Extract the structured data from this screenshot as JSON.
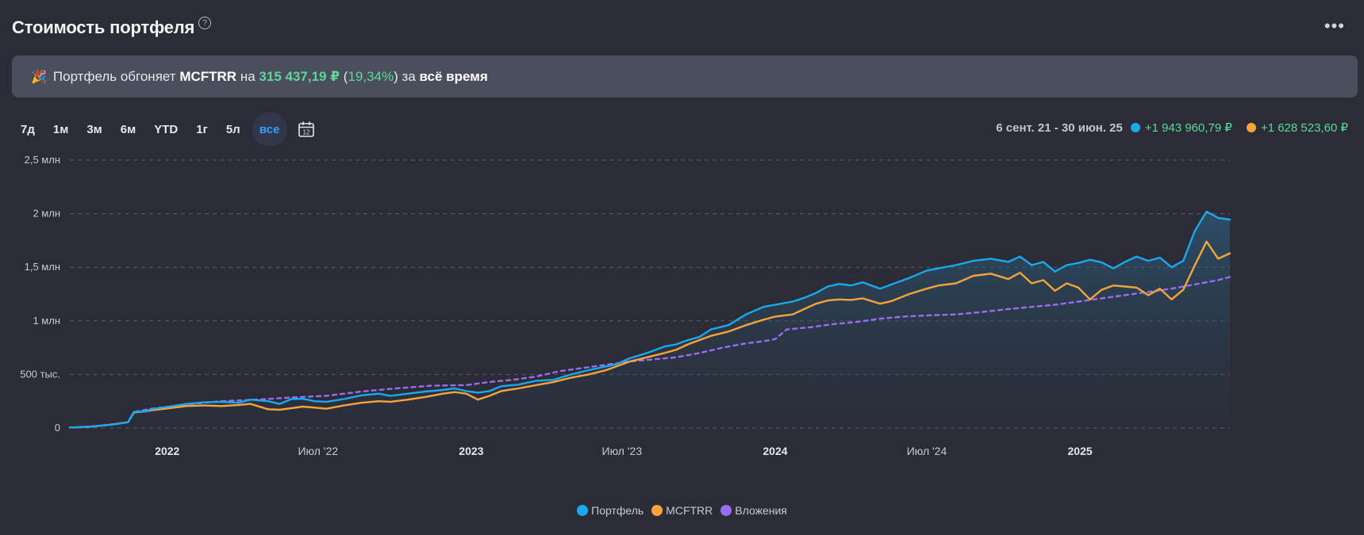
{
  "header": {
    "title": "Стоимость портфеля",
    "help_icon": "question-circle-icon",
    "menu_icon": "more-dots-icon",
    "menu_glyph": "•••",
    "help_glyph": "?"
  },
  "banner": {
    "icon": "party-popper-icon",
    "emoji": "🎉",
    "prefix": "Портфель обгоняет",
    "benchmark": "MCFTRR",
    "middle": "на",
    "amount": "315 437,19 ₽",
    "percent_open": "(",
    "percent": "19,34%",
    "percent_close": ")",
    "suffix": "за",
    "period": "всё время"
  },
  "periods": [
    {
      "label": "7д",
      "active": false
    },
    {
      "label": "1м",
      "active": false
    },
    {
      "label": "3м",
      "active": false
    },
    {
      "label": "6м",
      "active": false
    },
    {
      "label": "YTD",
      "active": false
    },
    {
      "label": "1г",
      "active": false
    },
    {
      "label": "5л",
      "active": false
    },
    {
      "label": "все",
      "active": true
    }
  ],
  "calendar_icon": "calendar-icon",
  "calendar_day": "12",
  "summary": {
    "range": "6 сент. 21 - 30 июн. 25",
    "portfolio_change": "+1 943 960,79 ₽",
    "benchmark_change": "+1 628 523,60 ₽"
  },
  "colors": {
    "portfolio": "#1aa9ef",
    "benchmark": "#f6a43a",
    "invested": "#9a6cf0",
    "positive": "#5ed898",
    "accent": "#2fa3ff"
  },
  "chart_data": {
    "type": "line",
    "title": "",
    "y_ticks": [
      "0",
      "500 тыс.",
      "1 млн",
      "1,5 млн",
      "2 млн",
      "2,5 млн"
    ],
    "y_tick_values": [
      0,
      500000,
      1000000,
      1500000,
      2000000,
      2500000
    ],
    "ylim": [
      0,
      2500000
    ],
    "x_ticks": [
      {
        "label": "2022",
        "x": "2022-01-01",
        "bold": true
      },
      {
        "label": "Июл '22",
        "x": "2022-07-01",
        "bold": false
      },
      {
        "label": "2023",
        "x": "2023-01-01",
        "bold": true
      },
      {
        "label": "Июл '23",
        "x": "2023-07-01",
        "bold": false
      },
      {
        "label": "2024",
        "x": "2024-01-01",
        "bold": true
      },
      {
        "label": "Июл '24",
        "x": "2024-07-01",
        "bold": false
      },
      {
        "label": "2025",
        "x": "2025-01-01",
        "bold": true
      }
    ],
    "xlim": [
      "2021-09-06",
      "2025-06-30"
    ],
    "grid": true,
    "legend_position": "bottom-center",
    "series": [
      {
        "name": "Портфель",
        "style": "solid-area",
        "points": [
          [
            "2021-09-06",
            5000
          ],
          [
            "2021-09-20",
            8000
          ],
          [
            "2021-10-04",
            15000
          ],
          [
            "2021-10-18",
            25000
          ],
          [
            "2021-11-01",
            38000
          ],
          [
            "2021-11-15",
            55000
          ],
          [
            "2021-11-22",
            150000
          ],
          [
            "2021-12-06",
            155000
          ],
          [
            "2021-12-13",
            175000
          ],
          [
            "2022-01-03",
            200000
          ],
          [
            "2022-01-24",
            225000
          ],
          [
            "2022-02-14",
            240000
          ],
          [
            "2022-03-07",
            245000
          ],
          [
            "2022-03-28",
            235000
          ],
          [
            "2022-04-11",
            265000
          ],
          [
            "2022-05-02",
            250000
          ],
          [
            "2022-05-16",
            225000
          ],
          [
            "2022-05-30",
            270000
          ],
          [
            "2022-06-13",
            272000
          ],
          [
            "2022-06-27",
            250000
          ],
          [
            "2022-07-11",
            245000
          ],
          [
            "2022-08-01",
            270000
          ],
          [
            "2022-08-22",
            305000
          ],
          [
            "2022-09-12",
            320000
          ],
          [
            "2022-09-26",
            300000
          ],
          [
            "2022-10-17",
            320000
          ],
          [
            "2022-11-07",
            340000
          ],
          [
            "2022-11-28",
            355000
          ],
          [
            "2022-12-12",
            370000
          ],
          [
            "2022-12-26",
            345000
          ],
          [
            "2023-01-09",
            330000
          ],
          [
            "2023-01-23",
            345000
          ],
          [
            "2023-02-06",
            390000
          ],
          [
            "2023-02-27",
            405000
          ],
          [
            "2023-03-20",
            440000
          ],
          [
            "2023-04-10",
            450000
          ],
          [
            "2023-05-01",
            500000
          ],
          [
            "2023-05-22",
            540000
          ],
          [
            "2023-06-12",
            575000
          ],
          [
            "2023-06-26",
            600000
          ],
          [
            "2023-07-10",
            650000
          ],
          [
            "2023-07-31",
            700000
          ],
          [
            "2023-08-21",
            760000
          ],
          [
            "2023-09-04",
            780000
          ],
          [
            "2023-09-18",
            820000
          ],
          [
            "2023-10-02",
            850000
          ],
          [
            "2023-10-16",
            920000
          ],
          [
            "2023-11-06",
            960000
          ],
          [
            "2023-11-27",
            1060000
          ],
          [
            "2023-12-18",
            1130000
          ],
          [
            "2024-01-01",
            1150000
          ],
          [
            "2024-01-22",
            1180000
          ],
          [
            "2024-02-05",
            1215000
          ],
          [
            "2024-02-19",
            1260000
          ],
          [
            "2024-03-04",
            1320000
          ],
          [
            "2024-03-18",
            1345000
          ],
          [
            "2024-04-01",
            1330000
          ],
          [
            "2024-04-15",
            1360000
          ],
          [
            "2024-05-06",
            1300000
          ],
          [
            "2024-05-20",
            1340000
          ],
          [
            "2024-06-10",
            1400000
          ],
          [
            "2024-07-01",
            1470000
          ],
          [
            "2024-07-15",
            1490000
          ],
          [
            "2024-08-05",
            1520000
          ],
          [
            "2024-08-26",
            1560000
          ],
          [
            "2024-09-16",
            1580000
          ],
          [
            "2024-10-07",
            1550000
          ],
          [
            "2024-10-21",
            1600000
          ],
          [
            "2024-11-04",
            1520000
          ],
          [
            "2024-11-18",
            1550000
          ],
          [
            "2024-12-02",
            1460000
          ],
          [
            "2024-12-16",
            1520000
          ],
          [
            "2024-12-30",
            1540000
          ],
          [
            "2025-01-13",
            1570000
          ],
          [
            "2025-01-27",
            1545000
          ],
          [
            "2025-02-10",
            1490000
          ],
          [
            "2025-02-24",
            1550000
          ],
          [
            "2025-03-10",
            1600000
          ],
          [
            "2025-03-24",
            1560000
          ],
          [
            "2025-04-07",
            1590000
          ],
          [
            "2025-04-21",
            1500000
          ],
          [
            "2025-05-05",
            1560000
          ],
          [
            "2025-05-19",
            1840000
          ],
          [
            "2025-06-02",
            2020000
          ],
          [
            "2025-06-16",
            1960000
          ],
          [
            "2025-06-30",
            1945000
          ]
        ]
      },
      {
        "name": "MCFTRR",
        "style": "solid",
        "points": [
          [
            "2021-09-06",
            5000
          ],
          [
            "2021-09-20",
            8000
          ],
          [
            "2021-10-04",
            15000
          ],
          [
            "2021-10-18",
            25000
          ],
          [
            "2021-11-01",
            38000
          ],
          [
            "2021-11-15",
            55000
          ],
          [
            "2021-11-22",
            145000
          ],
          [
            "2021-12-06",
            155000
          ],
          [
            "2021-12-13",
            165000
          ],
          [
            "2022-01-03",
            185000
          ],
          [
            "2022-01-24",
            205000
          ],
          [
            "2022-02-14",
            210000
          ],
          [
            "2022-03-07",
            205000
          ],
          [
            "2022-03-28",
            215000
          ],
          [
            "2022-04-11",
            225000
          ],
          [
            "2022-05-02",
            175000
          ],
          [
            "2022-05-16",
            170000
          ],
          [
            "2022-05-30",
            185000
          ],
          [
            "2022-06-13",
            200000
          ],
          [
            "2022-06-27",
            190000
          ],
          [
            "2022-07-11",
            180000
          ],
          [
            "2022-08-01",
            210000
          ],
          [
            "2022-08-22",
            235000
          ],
          [
            "2022-09-12",
            250000
          ],
          [
            "2022-09-26",
            245000
          ],
          [
            "2022-10-17",
            265000
          ],
          [
            "2022-11-07",
            290000
          ],
          [
            "2022-11-28",
            320000
          ],
          [
            "2022-12-12",
            335000
          ],
          [
            "2022-12-26",
            320000
          ],
          [
            "2023-01-09",
            265000
          ],
          [
            "2023-01-23",
            300000
          ],
          [
            "2023-02-06",
            345000
          ],
          [
            "2023-02-27",
            370000
          ],
          [
            "2023-03-20",
            400000
          ],
          [
            "2023-04-10",
            430000
          ],
          [
            "2023-05-01",
            470000
          ],
          [
            "2023-05-22",
            500000
          ],
          [
            "2023-06-12",
            540000
          ],
          [
            "2023-06-26",
            580000
          ],
          [
            "2023-07-10",
            620000
          ],
          [
            "2023-07-31",
            660000
          ],
          [
            "2023-08-21",
            700000
          ],
          [
            "2023-09-04",
            730000
          ],
          [
            "2023-09-18",
            780000
          ],
          [
            "2023-10-02",
            820000
          ],
          [
            "2023-10-16",
            860000
          ],
          [
            "2023-11-06",
            900000
          ],
          [
            "2023-11-27",
            960000
          ],
          [
            "2023-12-18",
            1010000
          ],
          [
            "2024-01-01",
            1040000
          ],
          [
            "2024-01-22",
            1060000
          ],
          [
            "2024-02-05",
            1110000
          ],
          [
            "2024-02-19",
            1160000
          ],
          [
            "2024-03-04",
            1190000
          ],
          [
            "2024-03-18",
            1200000
          ],
          [
            "2024-04-01",
            1195000
          ],
          [
            "2024-04-15",
            1210000
          ],
          [
            "2024-05-06",
            1160000
          ],
          [
            "2024-05-20",
            1185000
          ],
          [
            "2024-06-10",
            1250000
          ],
          [
            "2024-07-01",
            1300000
          ],
          [
            "2024-07-15",
            1330000
          ],
          [
            "2024-08-05",
            1350000
          ],
          [
            "2024-08-26",
            1420000
          ],
          [
            "2024-09-16",
            1440000
          ],
          [
            "2024-10-07",
            1390000
          ],
          [
            "2024-10-21",
            1450000
          ],
          [
            "2024-11-04",
            1350000
          ],
          [
            "2024-11-18",
            1380000
          ],
          [
            "2024-12-02",
            1280000
          ],
          [
            "2024-12-16",
            1350000
          ],
          [
            "2024-12-30",
            1310000
          ],
          [
            "2025-01-13",
            1200000
          ],
          [
            "2025-01-27",
            1290000
          ],
          [
            "2025-02-10",
            1330000
          ],
          [
            "2025-02-24",
            1320000
          ],
          [
            "2025-03-10",
            1310000
          ],
          [
            "2025-03-24",
            1240000
          ],
          [
            "2025-04-07",
            1300000
          ],
          [
            "2025-04-21",
            1200000
          ],
          [
            "2025-05-05",
            1290000
          ],
          [
            "2025-05-19",
            1520000
          ],
          [
            "2025-06-02",
            1740000
          ],
          [
            "2025-06-16",
            1580000
          ],
          [
            "2025-06-30",
            1630000
          ]
        ]
      },
      {
        "name": "Вложения",
        "style": "dashed",
        "points": [
          [
            "2021-09-06",
            5000
          ],
          [
            "2021-10-04",
            15000
          ],
          [
            "2021-11-01",
            38000
          ],
          [
            "2021-11-15",
            55000
          ],
          [
            "2021-11-22",
            150000
          ],
          [
            "2021-12-13",
            180000
          ],
          [
            "2022-01-24",
            220000
          ],
          [
            "2022-03-07",
            250000
          ],
          [
            "2022-04-18",
            265000
          ],
          [
            "2022-05-30",
            285000
          ],
          [
            "2022-07-11",
            300000
          ],
          [
            "2022-08-22",
            340000
          ],
          [
            "2022-10-03",
            370000
          ],
          [
            "2022-11-14",
            395000
          ],
          [
            "2022-12-26",
            400000
          ],
          [
            "2023-01-23",
            430000
          ],
          [
            "2023-02-20",
            450000
          ],
          [
            "2023-03-20",
            480000
          ],
          [
            "2023-04-17",
            530000
          ],
          [
            "2023-05-15",
            560000
          ],
          [
            "2023-06-12",
            590000
          ],
          [
            "2023-07-10",
            620000
          ],
          [
            "2023-08-07",
            640000
          ],
          [
            "2023-09-04",
            660000
          ],
          [
            "2023-10-02",
            700000
          ],
          [
            "2023-10-30",
            750000
          ],
          [
            "2023-11-27",
            790000
          ],
          [
            "2023-12-18",
            810000
          ],
          [
            "2024-01-01",
            830000
          ],
          [
            "2024-01-15",
            920000
          ],
          [
            "2024-02-12",
            940000
          ],
          [
            "2024-03-11",
            970000
          ],
          [
            "2024-04-08",
            990000
          ],
          [
            "2024-05-06",
            1020000
          ],
          [
            "2024-06-03",
            1040000
          ],
          [
            "2024-07-01",
            1050000
          ],
          [
            "2024-08-05",
            1060000
          ],
          [
            "2024-09-02",
            1080000
          ],
          [
            "2024-10-07",
            1110000
          ],
          [
            "2024-11-04",
            1130000
          ],
          [
            "2024-12-02",
            1150000
          ],
          [
            "2024-12-30",
            1180000
          ],
          [
            "2025-01-27",
            1210000
          ],
          [
            "2025-02-24",
            1240000
          ],
          [
            "2025-03-24",
            1270000
          ],
          [
            "2025-04-21",
            1300000
          ],
          [
            "2025-05-19",
            1340000
          ],
          [
            "2025-06-16",
            1380000
          ],
          [
            "2025-06-30",
            1410000
          ]
        ]
      }
    ]
  }
}
